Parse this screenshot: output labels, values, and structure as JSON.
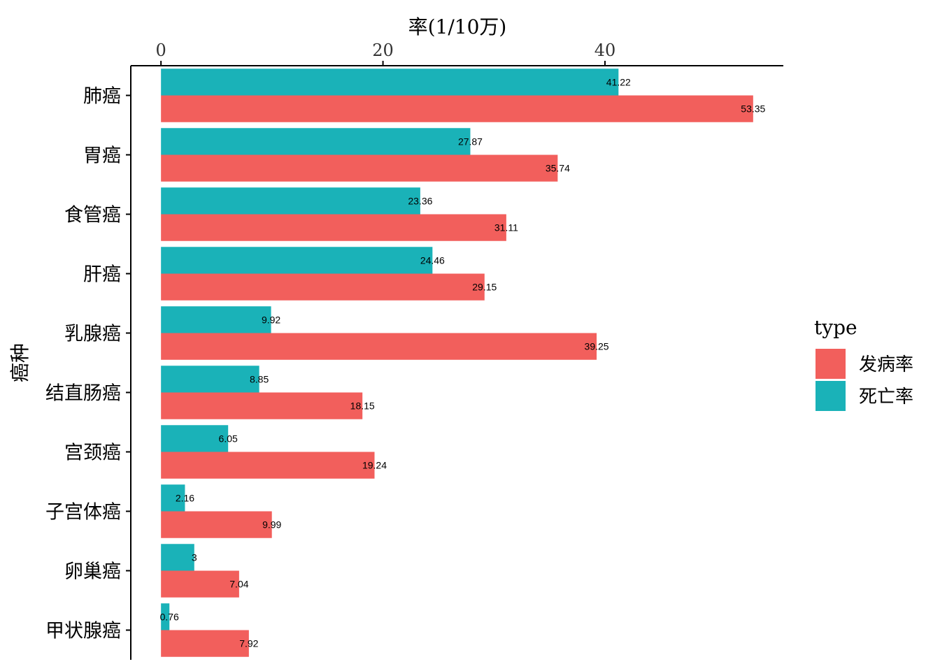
{
  "chart_data": {
    "type": "bar",
    "orientation": "horizontal",
    "categories": [
      "肺癌",
      "胃癌",
      "食管癌",
      "肝癌",
      "乳腺癌",
      "结直肠癌",
      "宫颈癌",
      "子宫体癌",
      "卵巢癌",
      "甲状腺癌"
    ],
    "series": [
      {
        "name": "发病率",
        "color": "#F25F5C",
        "values": [
          53.35,
          35.74,
          31.11,
          29.15,
          39.25,
          18.15,
          19.24,
          9.99,
          7.04,
          7.92
        ]
      },
      {
        "name": "死亡率",
        "color": "#1AB2B8",
        "values": [
          41.22,
          27.87,
          23.36,
          24.46,
          9.92,
          8.85,
          6.05,
          2.16,
          3,
          0.76
        ]
      }
    ],
    "data_labels": {
      "发病率": [
        "53.35",
        "35.74",
        "31.11",
        "29.15",
        "39.25",
        "18.15",
        "19.24",
        "9.99",
        "7.04",
        "7.92"
      ],
      "死亡率": [
        "41.22",
        "27.87",
        "23.36",
        "24.46",
        "9.92",
        "8.85",
        "6.05",
        "2.16",
        "3",
        "0.76"
      ]
    },
    "xlabel": "率(1/10万)",
    "ylabel": "癌种",
    "x_axis_position": "top",
    "x_ticks": [
      0,
      20,
      40
    ],
    "x_tick_labels": [
      "0",
      "20",
      "40"
    ],
    "xlim": [
      -2.72,
      56.07
    ],
    "grid": false,
    "legend": {
      "title": "type",
      "position": "right",
      "entries": [
        "发病率",
        "死亡率"
      ]
    }
  }
}
